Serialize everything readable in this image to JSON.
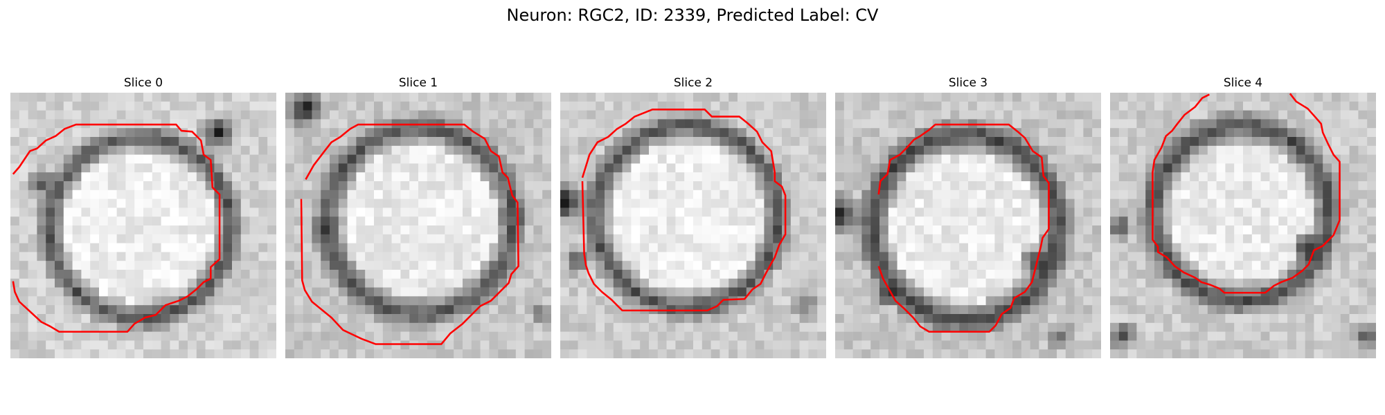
{
  "figure": {
    "title": "Neuron: RGC2, ID: 2339, Predicted Label: CV"
  },
  "panels": [
    {
      "title": "Slice 0",
      "membrane": {
        "cx": 14.6,
        "cy": 15.2,
        "r": 10.2,
        "w": 1.7,
        "bg": 0.82,
        "ring": 0.3,
        "inner": 0.93
      },
      "dark_spots": [
        [
          23.5,
          4.5,
          2.4,
          0.15
        ],
        [
          3.5,
          10.2,
          1.8,
          0.2
        ],
        [
          16.5,
          25.0,
          3,
          0.5
        ]
      ],
      "contour": [
        [
          0.3,
          9.2
        ],
        [
          1.0,
          8.4
        ],
        [
          2.2,
          6.6
        ],
        [
          3.0,
          6.3
        ],
        [
          4.0,
          5.4
        ],
        [
          5.1,
          4.9
        ],
        [
          6.1,
          4.1
        ],
        [
          7.4,
          3.6
        ],
        [
          18.7,
          3.6
        ],
        [
          19.3,
          4.3
        ],
        [
          20.5,
          4.4
        ],
        [
          21.5,
          5.4
        ],
        [
          21.8,
          7.0
        ],
        [
          22.6,
          7.6
        ],
        [
          22.8,
          10.7
        ],
        [
          23.6,
          11.5
        ],
        [
          23.6,
          18.8
        ],
        [
          22.6,
          19.7
        ],
        [
          22.6,
          21.0
        ],
        [
          21.8,
          21.4
        ],
        [
          21.0,
          22.2
        ],
        [
          20.0,
          23.0
        ],
        [
          19.0,
          23.5
        ],
        [
          17.5,
          24.0
        ],
        [
          16.4,
          25.1
        ],
        [
          15.2,
          25.4
        ],
        [
          14.0,
          26.1
        ],
        [
          13.2,
          27.0
        ],
        [
          5.5,
          27.0
        ],
        [
          4.5,
          26.4
        ],
        [
          3.5,
          25.9
        ],
        [
          1.0,
          23.6
        ],
        [
          0.5,
          22.5
        ],
        [
          0.3,
          21.3
        ]
      ]
    },
    {
      "title": "Slice 1",
      "membrane": {
        "cx": 15.2,
        "cy": 14.5,
        "r": 10.5,
        "w": 1.9,
        "bg": 0.78,
        "ring": 0.32,
        "inner": 0.92
      },
      "dark_spots": [
        [
          2.2,
          1.8,
          2.4,
          0.08
        ],
        [
          4.5,
          15.5,
          2,
          0.25
        ],
        [
          26.0,
          14.0,
          2,
          0.3
        ],
        [
          28.8,
          25.0,
          1.5,
          0.3
        ]
      ],
      "contour": [
        [
          2.3,
          9.8
        ],
        [
          3.2,
          8.2
        ],
        [
          4.5,
          6.5
        ],
        [
          5.2,
          5.6
        ],
        [
          6.2,
          5.0
        ],
        [
          7.3,
          4.1
        ],
        [
          8.2,
          3.6
        ],
        [
          20.2,
          3.6
        ],
        [
          21.2,
          4.4
        ],
        [
          22.5,
          5.2
        ],
        [
          23.2,
          6.6
        ],
        [
          24.1,
          7.2
        ],
        [
          24.5,
          9.0
        ],
        [
          25.1,
          9.6
        ],
        [
          25.6,
          11.6
        ],
        [
          26.2,
          12.4
        ],
        [
          26.3,
          19.6
        ],
        [
          25.5,
          20.5
        ],
        [
          25.2,
          21.5
        ],
        [
          24.2,
          22.5
        ],
        [
          23.2,
          23.5
        ],
        [
          22.0,
          24.1
        ],
        [
          21.0,
          25.1
        ],
        [
          20.0,
          26.1
        ],
        [
          18.6,
          27.2
        ],
        [
          17.6,
          28.4
        ],
        [
          10.2,
          28.4
        ],
        [
          8.6,
          27.8
        ],
        [
          6.5,
          26.8
        ],
        [
          5.2,
          25.4
        ],
        [
          3.0,
          23.6
        ],
        [
          2.2,
          22.3
        ],
        [
          1.9,
          21.2
        ],
        [
          1.8,
          12.0
        ]
      ]
    },
    {
      "title": "Slice 2",
      "membrane": {
        "cx": 14.3,
        "cy": 14.0,
        "r": 10.3,
        "w": 1.8,
        "bg": 0.8,
        "ring": 0.3,
        "inner": 0.93
      },
      "dark_spots": [
        [
          0.4,
          12.3,
          2.8,
          0.05
        ],
        [
          2.0,
          19.0,
          1.8,
          0.3
        ],
        [
          27.5,
          24.0,
          2,
          0.4
        ]
      ],
      "contour": [
        [
          2.5,
          9.6
        ],
        [
          3.3,
          7.0
        ],
        [
          4.2,
          5.6
        ],
        [
          5.4,
          5.0
        ],
        [
          6.4,
          4.1
        ],
        [
          7.4,
          3.5
        ],
        [
          8.4,
          2.7
        ],
        [
          10.4,
          1.9
        ],
        [
          16.3,
          1.9
        ],
        [
          17.1,
          2.7
        ],
        [
          20.2,
          2.7
        ],
        [
          21.2,
          3.5
        ],
        [
          22.2,
          4.4
        ],
        [
          22.8,
          5.6
        ],
        [
          23.8,
          6.6
        ],
        [
          24.2,
          9.0
        ],
        [
          24.2,
          10.0
        ],
        [
          25.0,
          10.6
        ],
        [
          25.4,
          11.6
        ],
        [
          25.4,
          16.0
        ],
        [
          24.7,
          17.2
        ],
        [
          24.2,
          18.6
        ],
        [
          23.8,
          19.3
        ],
        [
          23.2,
          20.4
        ],
        [
          22.6,
          21.6
        ],
        [
          21.7,
          22.2
        ],
        [
          20.8,
          23.3
        ],
        [
          18.4,
          23.4
        ],
        [
          17.7,
          24.1
        ],
        [
          16.6,
          24.6
        ],
        [
          7.0,
          24.6
        ],
        [
          5.8,
          23.4
        ],
        [
          4.7,
          22.5
        ],
        [
          3.8,
          21.6
        ],
        [
          3.2,
          20.4
        ],
        [
          2.9,
          19.5
        ],
        [
          2.7,
          18.2
        ],
        [
          2.5,
          10.0
        ]
      ]
    },
    {
      "title": "Slice 3",
      "membrane": {
        "cx": 14.7,
        "cy": 15.2,
        "r": 10.5,
        "w": 2.0,
        "bg": 0.78,
        "ring": 0.25,
        "inner": 0.92
      },
      "dark_spots": [
        [
          0.6,
          13.7,
          2.6,
          0.05
        ],
        [
          22.6,
          19.0,
          2.0,
          0.15
        ],
        [
          6.0,
          22.5,
          2,
          0.2
        ],
        [
          25.5,
          27.5,
          2,
          0.45
        ]
      ],
      "contour": [
        [
          4.9,
          11.5
        ],
        [
          5.1,
          10.0
        ],
        [
          5.9,
          9.2
        ],
        [
          6.2,
          7.6
        ],
        [
          7.3,
          7.0
        ],
        [
          8.1,
          6.2
        ],
        [
          8.9,
          5.3
        ],
        [
          9.6,
          4.9
        ],
        [
          10.6,
          4.2
        ],
        [
          11.3,
          3.6
        ],
        [
          19.6,
          3.6
        ],
        [
          20.6,
          4.4
        ],
        [
          21.4,
          5.1
        ],
        [
          22.3,
          6.6
        ],
        [
          23.3,
          7.3
        ],
        [
          23.5,
          9.4
        ],
        [
          24.1,
          10.2
        ],
        [
          24.1,
          15.4
        ],
        [
          23.4,
          16.4
        ],
        [
          23.2,
          17.4
        ],
        [
          22.8,
          19.0
        ],
        [
          22.2,
          21.4
        ],
        [
          21.4,
          22.5
        ],
        [
          20.2,
          23.2
        ],
        [
          19.8,
          24.3
        ],
        [
          18.8,
          25.0
        ],
        [
          18.1,
          26.3
        ],
        [
          17.4,
          27.0
        ],
        [
          10.6,
          27.0
        ],
        [
          9.6,
          26.4
        ],
        [
          8.8,
          25.4
        ],
        [
          7.8,
          24.4
        ],
        [
          6.8,
          23.5
        ],
        [
          5.4,
          21.0
        ],
        [
          4.9,
          19.6
        ]
      ]
    },
    {
      "title": "Slice 4",
      "membrane": {
        "cx": 14.8,
        "cy": 13.6,
        "r": 9.9,
        "w": 2.0,
        "bg": 0.8,
        "ring": 0.28,
        "inner": 0.92
      },
      "dark_spots": [
        [
          22.3,
          17.4,
          2,
          0.1
        ],
        [
          1.2,
          15.2,
          1.8,
          0.2
        ],
        [
          29.0,
          27.5,
          2,
          0.25
        ],
        [
          1.4,
          27.5,
          2,
          0.25
        ]
      ],
      "contour": [
        [
          11.2,
          0.2
        ],
        [
          10.4,
          0.6
        ],
        [
          9.6,
          1.6
        ],
        [
          8.4,
          2.5
        ],
        [
          7.6,
          3.5
        ],
        [
          7.0,
          4.3
        ],
        [
          6.3,
          4.9
        ],
        [
          5.8,
          6.2
        ],
        [
          5.0,
          7.6
        ],
        [
          4.8,
          9.0
        ],
        [
          4.8,
          16.6
        ],
        [
          5.4,
          17.4
        ],
        [
          5.4,
          18.0
        ],
        [
          6.4,
          18.6
        ],
        [
          7.3,
          19.6
        ],
        [
          8.3,
          20.3
        ],
        [
          9.6,
          20.9
        ],
        [
          10.3,
          21.4
        ],
        [
          11.3,
          21.7
        ],
        [
          12.3,
          22.1
        ],
        [
          12.9,
          22.6
        ],
        [
          17.5,
          22.6
        ],
        [
          18.5,
          21.8
        ],
        [
          19.3,
          21.4
        ],
        [
          20.6,
          20.9
        ],
        [
          21.7,
          20.1
        ],
        [
          22.4,
          19.4
        ],
        [
          23.0,
          17.8
        ],
        [
          24.0,
          17.3
        ],
        [
          25.2,
          16.1
        ],
        [
          25.9,
          14.4
        ],
        [
          25.9,
          7.8
        ],
        [
          25.2,
          7.0
        ],
        [
          24.6,
          5.8
        ],
        [
          24.0,
          4.5
        ],
        [
          23.8,
          3.5
        ],
        [
          23.1,
          2.7
        ],
        [
          22.3,
          1.8
        ],
        [
          21.0,
          1.0
        ],
        [
          20.3,
          0.1
        ]
      ]
    }
  ]
}
